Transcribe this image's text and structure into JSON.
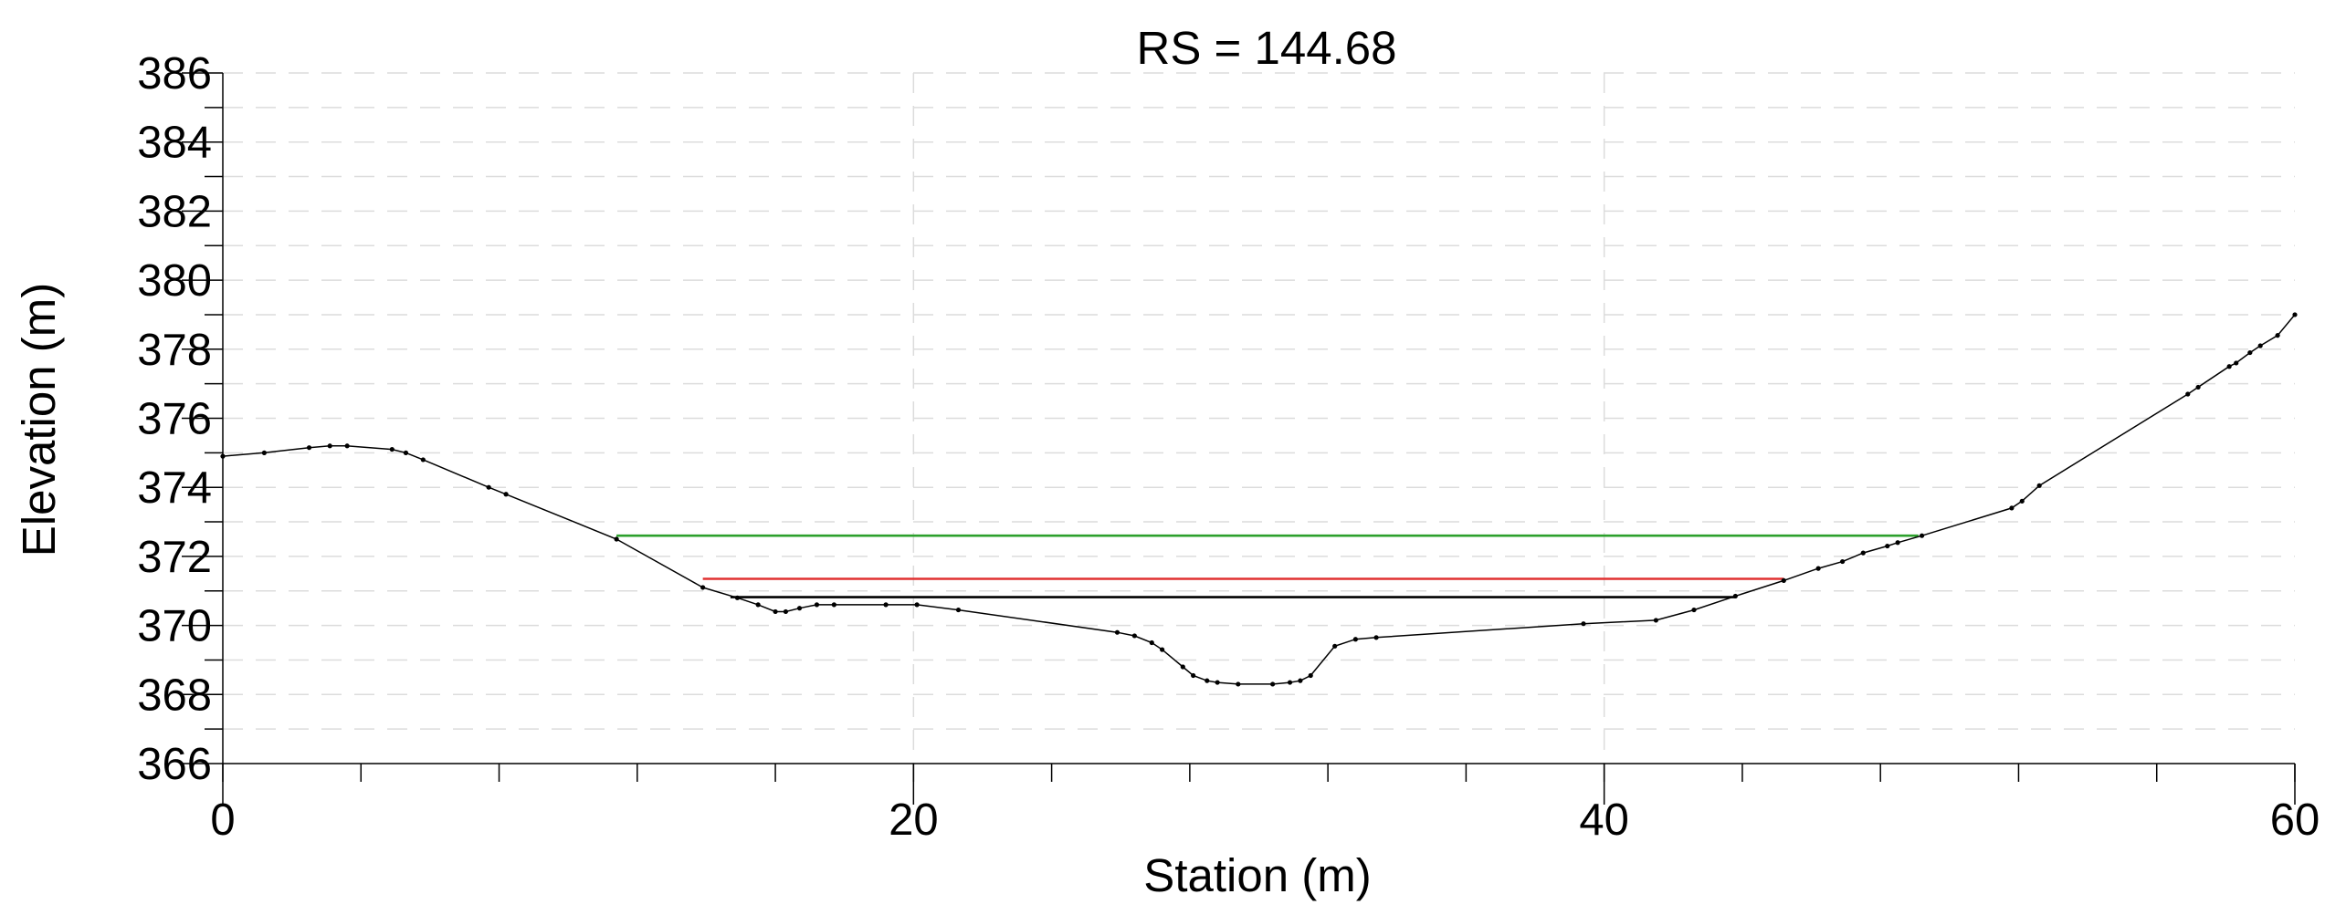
{
  "chart_data": {
    "type": "line",
    "title": "RS = 144.68",
    "xlabel": "Station (m)",
    "ylabel": "Elevation (m)",
    "xlim": [
      0,
      60
    ],
    "ylim": [
      366,
      386
    ],
    "x_ticks": [
      0,
      20,
      40,
      60
    ],
    "x_minor_step": 4,
    "y_ticks": [
      366,
      368,
      370,
      372,
      374,
      376,
      378,
      380,
      382,
      384,
      386
    ],
    "grid": true,
    "ground_profile": {
      "color": "#000000",
      "points": [
        [
          0.0,
          374.9
        ],
        [
          1.2,
          375.0
        ],
        [
          2.5,
          375.15
        ],
        [
          3.1,
          375.2
        ],
        [
          3.6,
          375.2
        ],
        [
          4.9,
          375.1
        ],
        [
          5.3,
          375.0
        ],
        [
          5.8,
          374.8
        ],
        [
          7.7,
          374.0
        ],
        [
          8.2,
          373.8
        ],
        [
          11.4,
          372.5
        ],
        [
          13.9,
          371.1
        ],
        [
          14.9,
          370.8
        ],
        [
          15.5,
          370.6
        ],
        [
          16.0,
          370.4
        ],
        [
          16.3,
          370.4
        ],
        [
          16.7,
          370.5
        ],
        [
          17.2,
          370.6
        ],
        [
          17.7,
          370.6
        ],
        [
          19.2,
          370.6
        ],
        [
          20.1,
          370.6
        ],
        [
          21.3,
          370.45
        ],
        [
          25.9,
          369.8
        ],
        [
          26.4,
          369.7
        ],
        [
          26.9,
          369.5
        ],
        [
          27.2,
          369.3
        ],
        [
          27.8,
          368.8
        ],
        [
          28.1,
          368.55
        ],
        [
          28.5,
          368.4
        ],
        [
          28.8,
          368.35
        ],
        [
          29.4,
          368.3
        ],
        [
          30.4,
          368.3
        ],
        [
          30.9,
          368.35
        ],
        [
          31.2,
          368.4
        ],
        [
          31.5,
          368.55
        ],
        [
          32.2,
          369.4
        ],
        [
          32.8,
          369.6
        ],
        [
          33.4,
          369.65
        ],
        [
          39.4,
          370.05
        ],
        [
          41.5,
          370.15
        ],
        [
          42.6,
          370.45
        ],
        [
          43.8,
          370.85
        ],
        [
          45.2,
          371.3
        ],
        [
          46.2,
          371.65
        ],
        [
          46.9,
          371.85
        ],
        [
          47.5,
          372.1
        ],
        [
          48.2,
          372.3
        ],
        [
          48.5,
          372.4
        ],
        [
          49.2,
          372.6
        ],
        [
          51.8,
          373.4
        ],
        [
          52.1,
          373.6
        ],
        [
          52.6,
          374.05
        ],
        [
          56.9,
          376.7
        ],
        [
          57.2,
          376.9
        ],
        [
          58.1,
          377.5
        ],
        [
          58.3,
          377.6
        ],
        [
          58.7,
          377.9
        ],
        [
          59.0,
          378.1
        ],
        [
          59.5,
          378.4
        ],
        [
          60.0,
          379.0
        ]
      ]
    },
    "water_levels": [
      {
        "color": "#2ca02c",
        "elevation": 372.6,
        "x_start": 11.4,
        "x_end": 49.1
      },
      {
        "color": "#e03030",
        "elevation": 371.35,
        "x_start": 13.9,
        "x_end": 45.2
      },
      {
        "color": "#000000",
        "elevation": 370.82,
        "x_start": 14.7,
        "x_end": 43.8
      }
    ]
  }
}
